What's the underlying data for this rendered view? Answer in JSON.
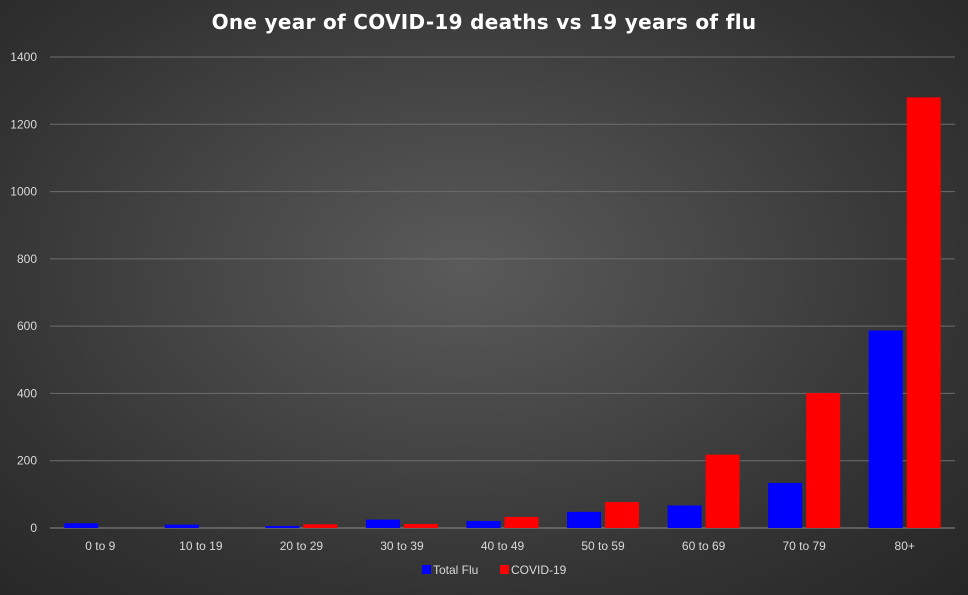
{
  "chart_data": {
    "type": "bar",
    "title": "One year of COVID-19 deaths vs 19 years of flu",
    "xlabel": "",
    "ylabel": "",
    "categories": [
      "0 to 9",
      "10 to 19",
      "20 to 29",
      "30 to 39",
      "40 to 49",
      "50 to 59",
      "60 to 69",
      "70 to 79",
      "80+"
    ],
    "series": [
      {
        "name": "Total Flu",
        "color": "#0000ff",
        "values": [
          14,
          10,
          6,
          25,
          21,
          48,
          67,
          134,
          587
        ]
      },
      {
        "name": "COVID-19",
        "color": "#ff0000",
        "values": [
          0,
          0,
          11,
          12,
          33,
          77,
          218,
          401,
          1280
        ]
      }
    ],
    "ylim": [
      0,
      1400
    ],
    "yticks": [
      0,
      200,
      400,
      600,
      800,
      1000,
      1200,
      1400
    ],
    "grid": true,
    "legend_position": "bottom"
  }
}
